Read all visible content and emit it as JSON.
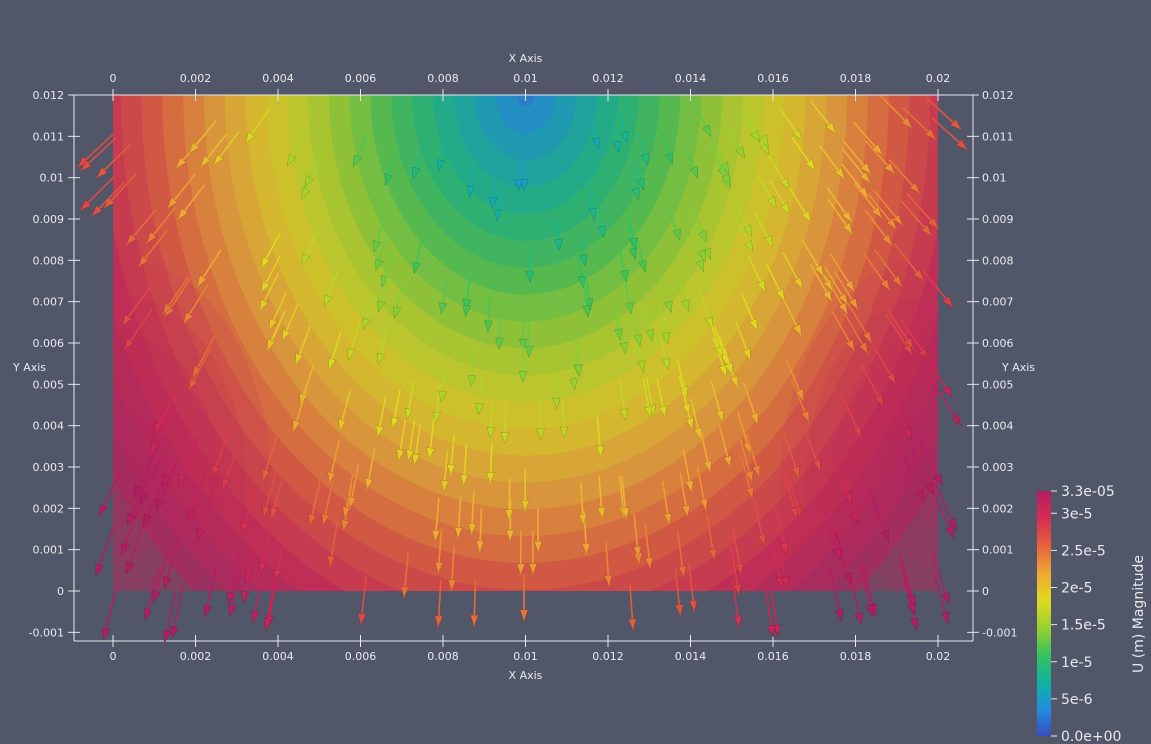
{
  "chart_data": {
    "type": "vector-field",
    "x_axis_title": "X Axis",
    "y_axis_title": "Y Axis",
    "xlim": [
      0,
      0.02
    ],
    "ylim": [
      0,
      0.012
    ],
    "x_ticks": [
      "0",
      "0.002",
      "0.004",
      "0.006",
      "0.008",
      "0.01",
      "0.012",
      "0.014",
      "0.016",
      "0.018",
      "0.02"
    ],
    "y_ticks": [
      "-0.001",
      "0",
      "0.001",
      "0.002",
      "0.003",
      "0.004",
      "0.005",
      "0.006",
      "0.007",
      "0.008",
      "0.009",
      "0.01",
      "0.011",
      "0.012"
    ],
    "field_name": "U (m) Magnitude",
    "range": [
      0,
      3.3e-05
    ],
    "colorbar_labels": [
      {
        "value": 3.3e-05,
        "label": "3.3e-05"
      },
      {
        "value": 3e-05,
        "label": "3e-5"
      },
      {
        "value": 2.5e-05,
        "label": "2.5e-5"
      },
      {
        "value": 2e-05,
        "label": "2e-5"
      },
      {
        "value": 1.5e-05,
        "label": "1.5e-5"
      },
      {
        "value": 1e-05,
        "label": "1e-5"
      },
      {
        "value": 5e-06,
        "label": "5e-6"
      },
      {
        "value": 0,
        "label": "0.0e+00"
      }
    ],
    "colormap": [
      "#3b4cc0",
      "#1f8ee0",
      "#12b3a0",
      "#36c35c",
      "#9cd22e",
      "#e0d920",
      "#f0a636",
      "#e5623b",
      "#d62b52",
      "#b51d63"
    ],
    "glyph_type": "arrow"
  },
  "colors": {
    "background": "#525669",
    "axes": "#e8e8ee"
  }
}
